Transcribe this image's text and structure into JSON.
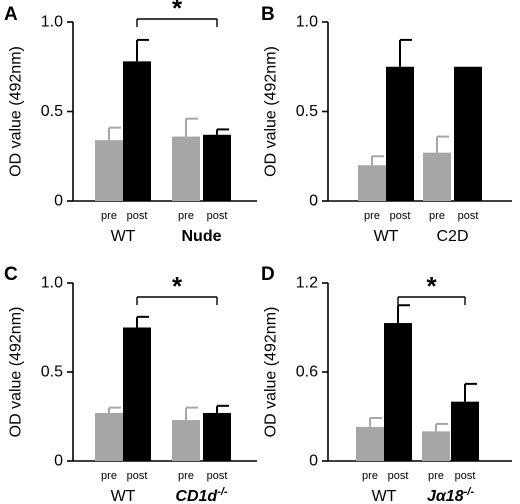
{
  "chart_data": [
    {
      "type": "bar",
      "panel_letter": "A",
      "ylabel": "OD value (492nm)",
      "ylim": [
        0,
        1.0
      ],
      "yticks": [
        "0",
        "0.5",
        "1.0"
      ],
      "series": [
        {
          "name": "pre",
          "color": "#a6a6a6"
        },
        {
          "name": "post",
          "color": "#000000"
        }
      ],
      "groups": [
        {
          "label": "WT",
          "style": "normal",
          "values": [
            0.34,
            0.78
          ],
          "errors": [
            0.07,
            0.12
          ]
        },
        {
          "label": "Nude",
          "style": "bold",
          "values": [
            0.36,
            0.37
          ],
          "errors": [
            0.1,
            0.03
          ]
        }
      ],
      "significance": {
        "text": "*",
        "between": [
          0,
          1
        ]
      }
    },
    {
      "type": "bar",
      "panel_letter": "B",
      "ylabel": "OD value (492nm)",
      "ylim": [
        0,
        1.0
      ],
      "yticks": [
        "0",
        "0.5",
        "1.0"
      ],
      "series": [
        {
          "name": "pre",
          "color": "#a6a6a6"
        },
        {
          "name": "post",
          "color": "#000000"
        }
      ],
      "groups": [
        {
          "label": "WT",
          "style": "normal",
          "values": [
            0.2,
            0.75
          ],
          "errors": [
            0.05,
            0.15
          ]
        },
        {
          "label": "C2D",
          "style": "normal",
          "values": [
            0.27,
            0.75
          ],
          "errors": [
            0.09,
            0.0
          ]
        }
      ]
    },
    {
      "type": "bar",
      "panel_letter": "C",
      "ylabel": "OD value (492nm)",
      "ylim": [
        0,
        1.0
      ],
      "yticks": [
        "0",
        "0.5",
        "1.0"
      ],
      "series": [
        {
          "name": "pre",
          "color": "#a6a6a6"
        },
        {
          "name": "post",
          "color": "#000000"
        }
      ],
      "groups": [
        {
          "label": "WT",
          "style": "normal",
          "values": [
            0.27,
            0.75
          ],
          "errors": [
            0.03,
            0.06
          ]
        },
        {
          "label": "CD1d",
          "superscript": "-/-",
          "style": "italic",
          "values": [
            0.23,
            0.27
          ],
          "errors": [
            0.07,
            0.04
          ]
        }
      ],
      "significance": {
        "text": "*",
        "between": [
          0,
          1
        ]
      }
    },
    {
      "type": "bar",
      "panel_letter": "D",
      "ylabel": "OD value (492nm)",
      "ylim": [
        0,
        1.2
      ],
      "yticks": [
        "0",
        "0.6",
        "1.2"
      ],
      "series": [
        {
          "name": "pre",
          "color": "#a6a6a6"
        },
        {
          "name": "post",
          "color": "#000000"
        }
      ],
      "groups": [
        {
          "label": "WT",
          "style": "normal",
          "values": [
            0.23,
            0.93
          ],
          "errors": [
            0.06,
            0.12
          ]
        },
        {
          "label": "Jα18",
          "superscript": "-/-",
          "style": "italic",
          "values": [
            0.2,
            0.4
          ],
          "errors": [
            0.05,
            0.12
          ]
        }
      ],
      "significance": {
        "text": "*",
        "between": [
          0,
          1
        ]
      }
    }
  ]
}
